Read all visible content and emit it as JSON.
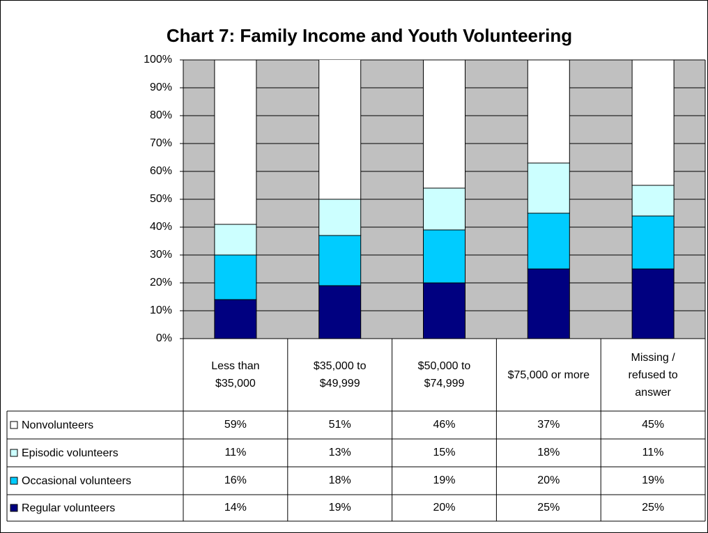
{
  "chart_data": {
    "type": "stacked-bar",
    "title": "Chart 7: Family Income and Youth Volunteering",
    "categories": [
      "Less than $35,000",
      "$35,000 to $49,999",
      "$50,000 to $74,999",
      "$75,000 or more",
      "Missing / refused to answer"
    ],
    "series": [
      {
        "name": "Nonvolunteers",
        "color": "#ffffff",
        "values": [
          59,
          51,
          46,
          37,
          45
        ],
        "value_labels": [
          "59%",
          "51%",
          "46%",
          "37%",
          "45%"
        ]
      },
      {
        "name": "Episodic volunteers",
        "color": "#ccffff",
        "values": [
          11,
          13,
          15,
          18,
          11
        ],
        "value_labels": [
          "11%",
          "13%",
          "15%",
          "18%",
          "11%"
        ]
      },
      {
        "name": "Occasional volunteers",
        "color": "#00ccff",
        "values": [
          16,
          18,
          19,
          20,
          19
        ],
        "value_labels": [
          "16%",
          "18%",
          "19%",
          "20%",
          "19%"
        ]
      },
      {
        "name": "Regular volunteers",
        "color": "#000080",
        "values": [
          14,
          19,
          20,
          25,
          25
        ],
        "value_labels": [
          "14%",
          "19%",
          "20%",
          "25%",
          "25%"
        ]
      }
    ],
    "ylim": [
      0,
      100
    ],
    "yticks": [
      {
        "value": 0,
        "label": "0%"
      },
      {
        "value": 10,
        "label": "10%"
      },
      {
        "value": 20,
        "label": "20%"
      },
      {
        "value": 30,
        "label": "30%"
      },
      {
        "value": 40,
        "label": "40%"
      },
      {
        "value": 50,
        "label": "50%"
      },
      {
        "value": 60,
        "label": "60%"
      },
      {
        "value": 70,
        "label": "70%"
      },
      {
        "value": 80,
        "label": "80%"
      },
      {
        "value": 90,
        "label": "90%"
      },
      {
        "value": 100,
        "label": "100%"
      }
    ],
    "grid": true,
    "plot_background": "#c0c0c0"
  }
}
